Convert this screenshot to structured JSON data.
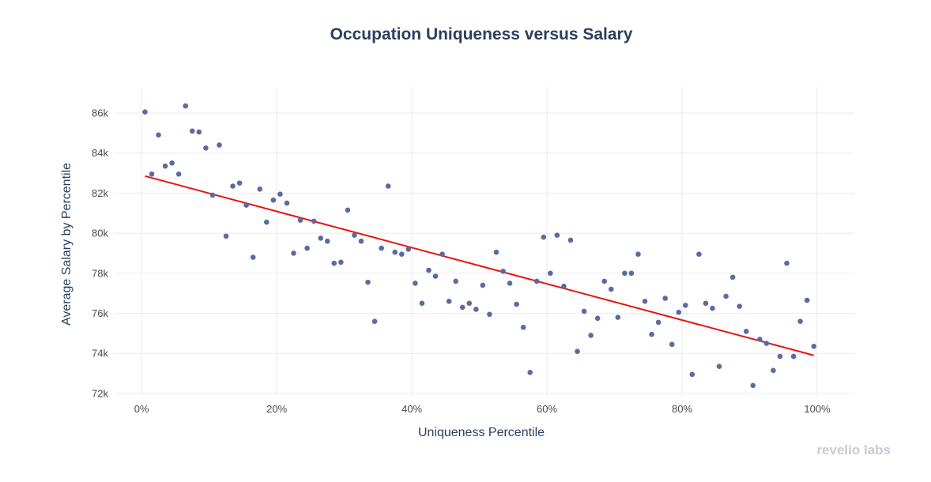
{
  "watermark": "revelio labs",
  "colors": {
    "point": "#5b6aa3",
    "trendline": "#e8140f",
    "grid": "#ebebeb",
    "title": "#2a3f5f",
    "tick": "#4a4a4a",
    "watermark": "#c9ccd1"
  },
  "chart_data": {
    "type": "scatter",
    "title": "Occupation Uniqueness versus Salary",
    "xlabel": "Uniqueness Percentile",
    "ylabel": "Average Salary by Percentile",
    "xlim": [
      -0.04,
      1.055
    ],
    "ylim": [
      71800,
      87300
    ],
    "grid": true,
    "legend": "none",
    "x_ticks": [
      {
        "value": 0,
        "label": "0%"
      },
      {
        "value": 0.2,
        "label": "20%"
      },
      {
        "value": 0.4,
        "label": "40%"
      },
      {
        "value": 0.6,
        "label": "60%"
      },
      {
        "value": 0.8,
        "label": "80%"
      },
      {
        "value": 1.0,
        "label": "100%"
      }
    ],
    "y_ticks": [
      {
        "value": 72000,
        "label": "72k"
      },
      {
        "value": 74000,
        "label": "74k"
      },
      {
        "value": 76000,
        "label": "76k"
      },
      {
        "value": 78000,
        "label": "78k"
      },
      {
        "value": 80000,
        "label": "80k"
      },
      {
        "value": 82000,
        "label": "82k"
      },
      {
        "value": 84000,
        "label": "84k"
      },
      {
        "value": 86000,
        "label": "86k"
      }
    ],
    "series": [
      {
        "type": "scatter",
        "points": [
          [
            0.005,
            86050
          ],
          [
            0.015,
            82950
          ],
          [
            0.025,
            84900
          ],
          [
            0.035,
            83350
          ],
          [
            0.045,
            83500
          ],
          [
            0.055,
            82950
          ],
          [
            0.065,
            86350
          ],
          [
            0.075,
            85100
          ],
          [
            0.085,
            85050
          ],
          [
            0.095,
            84250
          ],
          [
            0.105,
            81900
          ],
          [
            0.115,
            84400
          ],
          [
            0.125,
            79850
          ],
          [
            0.135,
            82350
          ],
          [
            0.145,
            82500
          ],
          [
            0.155,
            81400
          ],
          [
            0.165,
            78800
          ],
          [
            0.175,
            82200
          ],
          [
            0.185,
            80550
          ],
          [
            0.195,
            81650
          ],
          [
            0.205,
            81950
          ],
          [
            0.215,
            81500
          ],
          [
            0.225,
            79000
          ],
          [
            0.235,
            80650
          ],
          [
            0.245,
            79250
          ],
          [
            0.255,
            80600
          ],
          [
            0.265,
            79750
          ],
          [
            0.275,
            79600
          ],
          [
            0.285,
            78500
          ],
          [
            0.295,
            78550
          ],
          [
            0.305,
            81150
          ],
          [
            0.315,
            79900
          ],
          [
            0.325,
            79600
          ],
          [
            0.335,
            77550
          ],
          [
            0.345,
            75600
          ],
          [
            0.355,
            79250
          ],
          [
            0.365,
            82350
          ],
          [
            0.375,
            79050
          ],
          [
            0.385,
            78950
          ],
          [
            0.395,
            79200
          ],
          [
            0.405,
            77500
          ],
          [
            0.415,
            76500
          ],
          [
            0.425,
            78150
          ],
          [
            0.435,
            77850
          ],
          [
            0.445,
            78950
          ],
          [
            0.455,
            76600
          ],
          [
            0.465,
            77600
          ],
          [
            0.475,
            76300
          ],
          [
            0.485,
            76500
          ],
          [
            0.495,
            76200
          ],
          [
            0.505,
            77400
          ],
          [
            0.515,
            75950
          ],
          [
            0.525,
            79050
          ],
          [
            0.535,
            78100
          ],
          [
            0.545,
            77500
          ],
          [
            0.555,
            76450
          ],
          [
            0.565,
            75300
          ],
          [
            0.575,
            73050
          ],
          [
            0.585,
            77600
          ],
          [
            0.595,
            79800
          ],
          [
            0.605,
            78000
          ],
          [
            0.615,
            79900
          ],
          [
            0.625,
            77350
          ],
          [
            0.635,
            79650
          ],
          [
            0.645,
            74100
          ],
          [
            0.655,
            76100
          ],
          [
            0.665,
            74900
          ],
          [
            0.675,
            75750
          ],
          [
            0.685,
            77600
          ],
          [
            0.695,
            77200
          ],
          [
            0.705,
            75800
          ],
          [
            0.715,
            78000
          ],
          [
            0.725,
            78000
          ],
          [
            0.735,
            78950
          ],
          [
            0.745,
            76600
          ],
          [
            0.755,
            74950
          ],
          [
            0.765,
            75550
          ],
          [
            0.775,
            76750
          ],
          [
            0.785,
            74450
          ],
          [
            0.795,
            76050
          ],
          [
            0.805,
            76400
          ],
          [
            0.815,
            72950
          ],
          [
            0.825,
            78950
          ],
          [
            0.835,
            76500
          ],
          [
            0.845,
            76250
          ],
          [
            0.855,
            73350
          ],
          [
            0.865,
            76850
          ],
          [
            0.875,
            77800
          ],
          [
            0.885,
            76350
          ],
          [
            0.895,
            75100
          ],
          [
            0.905,
            72400
          ],
          [
            0.915,
            74700
          ],
          [
            0.925,
            74500
          ],
          [
            0.935,
            73150
          ],
          [
            0.945,
            73850
          ],
          [
            0.955,
            78500
          ],
          [
            0.965,
            73850
          ],
          [
            0.975,
            75600
          ],
          [
            0.985,
            76650
          ],
          [
            0.995,
            74350
          ]
        ]
      },
      {
        "type": "line",
        "points": [
          [
            0.005,
            82850
          ],
          [
            0.995,
            73900
          ]
        ]
      }
    ]
  }
}
